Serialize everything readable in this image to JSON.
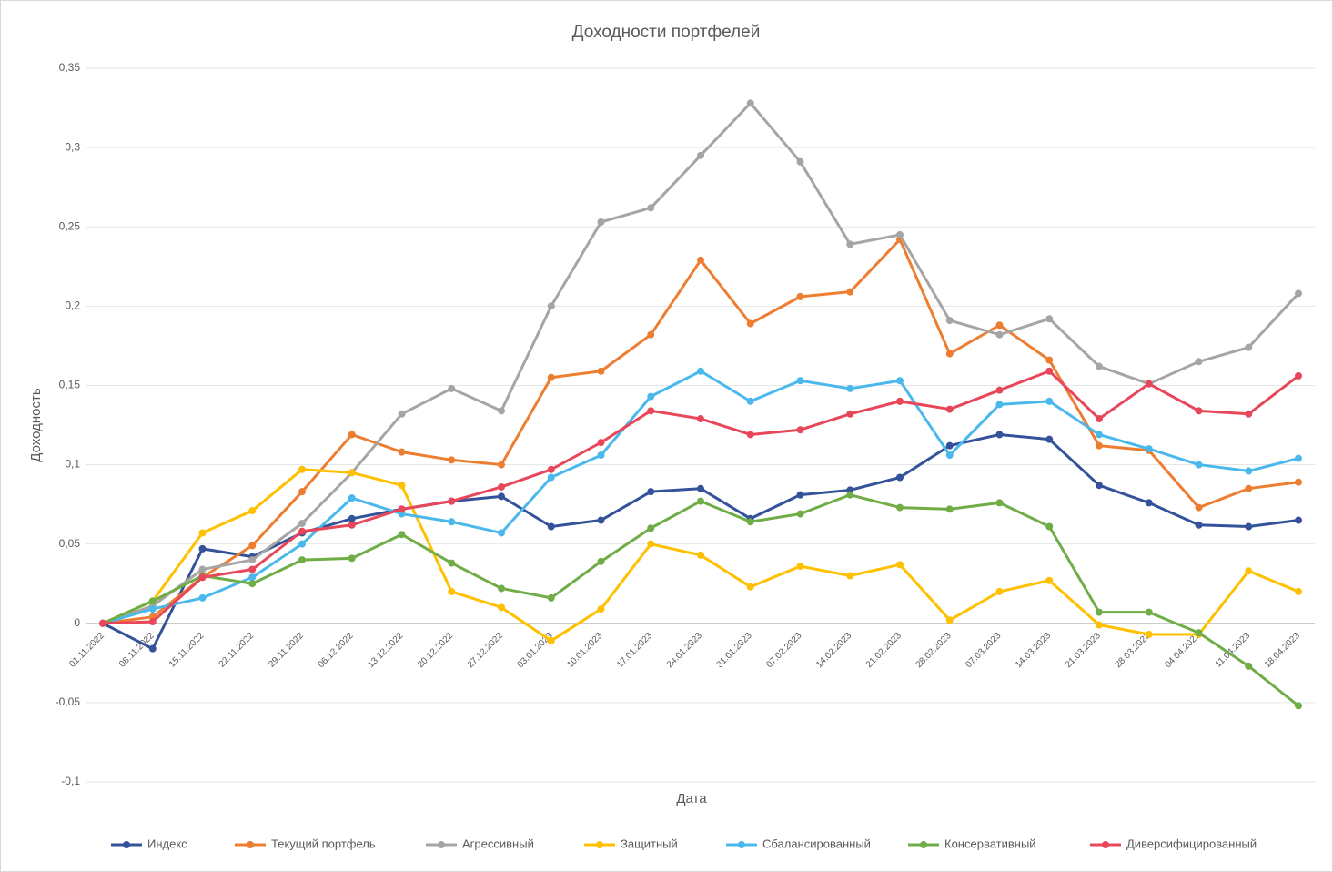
{
  "chart_data": {
    "type": "line",
    "title": "Доходности портфелей",
    "x_label": "Дата",
    "y_label": "Доходность",
    "categories": [
      "01.11.2022",
      "08.11.2022",
      "15.11.2022",
      "22.11.2022",
      "29.11.2022",
      "06.12.2022",
      "13.12.2022",
      "20.12.2022",
      "27.12.2022",
      "03.01.2023",
      "10.01.2023",
      "17.01.2023",
      "24.01.2023",
      "31.01.2023",
      "07.02.2023",
      "14.02.2023",
      "21.02.2023",
      "28.02.2023",
      "07.03.2023",
      "14.03.2023",
      "21.03.2023",
      "28.03.2023",
      "04.04.2023",
      "11.04.2023",
      "18.04.2023"
    ],
    "ylim": [
      -0.1,
      0.35
    ],
    "yticks": [
      {
        "value": -0.1,
        "label": "-0,1"
      },
      {
        "value": -0.05,
        "label": "-0,05"
      },
      0,
      {
        "value": 0.05,
        "label": "0,05"
      },
      {
        "value": 0.1,
        "label": "0,1"
      },
      {
        "value": 0.15,
        "label": "0,15"
      },
      {
        "value": 0.2,
        "label": "0,2"
      },
      {
        "value": 0.25,
        "label": "0,25"
      },
      {
        "value": 0.3,
        "label": "0,3"
      },
      {
        "value": 0.35,
        "label": "0,35"
      }
    ],
    "grid": true,
    "legend": "bottom",
    "series": [
      {
        "name": "Индекс",
        "color": "#34529a",
        "values": [
          0,
          -0.016,
          0.047,
          0.042,
          0.057,
          0.066,
          0.072,
          0.077,
          0.08,
          0.061,
          0.065,
          0.083,
          0.085,
          0.066,
          0.081,
          0.084,
          0.092,
          0.112,
          0.119,
          0.116,
          0.087,
          0.076,
          0.062,
          0.061,
          0.065
        ]
      },
      {
        "name": "Текущий портфель",
        "color": "#ed7d31",
        "values": [
          0,
          0.004,
          0.029,
          0.049,
          0.083,
          0.119,
          0.108,
          0.103,
          0.1,
          0.155,
          0.159,
          0.182,
          0.229,
          0.189,
          0.206,
          0.209,
          0.242,
          0.17,
          0.188,
          0.166,
          0.112,
          0.109,
          0.073,
          0.085,
          0.089
        ]
      },
      {
        "name": "Агрессивный",
        "color": "#a5a5a5",
        "values": [
          0,
          0.011,
          0.034,
          0.04,
          0.063,
          0.095,
          0.132,
          0.148,
          0.134,
          0.2,
          0.253,
          0.262,
          0.295,
          0.328,
          0.291,
          0.239,
          0.245,
          0.191,
          0.182,
          0.192,
          0.162,
          0.151,
          0.165,
          0.174,
          0.208
        ]
      },
      {
        "name": "Защитный",
        "color": "#ffc000",
        "values": [
          0,
          0.014,
          0.057,
          0.071,
          0.097,
          0.095,
          0.087,
          0.02,
          0.01,
          -0.011,
          0.009,
          0.05,
          0.043,
          0.023,
          0.036,
          0.03,
          0.037,
          0.002,
          0.02,
          0.027,
          -0.001,
          -0.007,
          -0.007,
          0.033,
          0.02
        ]
      },
      {
        "name": "Сбалансированный",
        "color": "#4bb8ec",
        "values": [
          0,
          0.009,
          0.016,
          0.029,
          0.05,
          0.079,
          0.069,
          0.064,
          0.057,
          0.092,
          0.106,
          0.143,
          0.159,
          0.14,
          0.153,
          0.148,
          0.153,
          0.106,
          0.138,
          0.14,
          0.119,
          0.11,
          0.1,
          0.096,
          0.104
        ]
      },
      {
        "name": "Консервативный",
        "color": "#70ad47",
        "values": [
          0,
          0.014,
          0.03,
          0.025,
          0.04,
          0.041,
          0.056,
          0.038,
          0.022,
          0.016,
          0.039,
          0.06,
          0.077,
          0.064,
          0.069,
          0.081,
          0.073,
          0.072,
          0.076,
          0.061,
          0.007,
          0.007,
          -0.006,
          -0.027,
          -0.052
        ]
      },
      {
        "name": "Диверсифицированный",
        "color": "#e8475a",
        "values": [
          0,
          0.001,
          0.029,
          0.034,
          0.058,
          0.062,
          0.072,
          0.077,
          0.086,
          0.097,
          0.114,
          0.134,
          0.129,
          0.119,
          0.122,
          0.132,
          0.14,
          0.135,
          0.147,
          0.159,
          0.129,
          0.151,
          0.134,
          0.132,
          0.156
        ]
      }
    ]
  }
}
